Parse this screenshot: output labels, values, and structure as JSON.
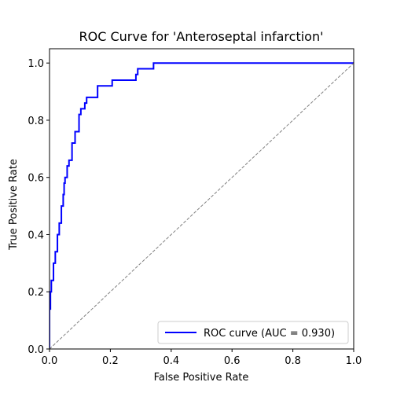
{
  "chart_data": {
    "type": "line",
    "title": "ROC Curve for 'Anteroseptal infarction'",
    "xlabel": "False Positive Rate",
    "ylabel": "True Positive Rate",
    "xlim": [
      0.0,
      1.0
    ],
    "ylim": [
      0.0,
      1.05
    ],
    "xticks": [
      "0.0",
      "0.2",
      "0.4",
      "0.6",
      "0.8",
      "1.0"
    ],
    "yticks": [
      "0.0",
      "0.2",
      "0.4",
      "0.6",
      "0.8",
      "1.0"
    ],
    "grid": false,
    "legend_position": "lower-right",
    "legend_label": "ROC curve (AUC = 0.930)",
    "series": [
      {
        "name": "ROC curve (AUC = 0.930)",
        "color": "#0000ff",
        "style": "solid",
        "x": [
          0.0,
          0.0,
          0.003,
          0.003,
          0.006,
          0.006,
          0.013,
          0.013,
          0.019,
          0.019,
          0.026,
          0.026,
          0.032,
          0.032,
          0.039,
          0.039,
          0.045,
          0.045,
          0.048,
          0.048,
          0.051,
          0.051,
          0.058,
          0.058,
          0.064,
          0.064,
          0.074,
          0.074,
          0.084,
          0.084,
          0.09,
          0.09,
          0.097,
          0.097,
          0.103,
          0.103,
          0.116,
          0.116,
          0.122,
          0.122,
          0.129,
          0.129,
          0.158,
          0.158,
          0.177,
          0.177,
          0.206,
          0.206,
          0.284,
          0.284,
          0.29,
          0.29,
          0.342,
          0.342,
          1.0
        ],
        "y": [
          0.0,
          0.14,
          0.14,
          0.2,
          0.2,
          0.24,
          0.24,
          0.3,
          0.3,
          0.34,
          0.34,
          0.4,
          0.4,
          0.44,
          0.44,
          0.5,
          0.5,
          0.54,
          0.54,
          0.58,
          0.58,
          0.6,
          0.6,
          0.64,
          0.64,
          0.66,
          0.66,
          0.72,
          0.72,
          0.76,
          0.76,
          0.76,
          0.76,
          0.82,
          0.82,
          0.84,
          0.84,
          0.86,
          0.86,
          0.88,
          0.88,
          0.88,
          0.88,
          0.92,
          0.92,
          0.92,
          0.92,
          0.94,
          0.94,
          0.96,
          0.96,
          0.98,
          0.98,
          1.0,
          1.0
        ]
      },
      {
        "color": "#808080",
        "style": "dashed",
        "x": [
          0.0,
          1.0
        ],
        "y": [
          0.0,
          1.0
        ]
      }
    ]
  }
}
